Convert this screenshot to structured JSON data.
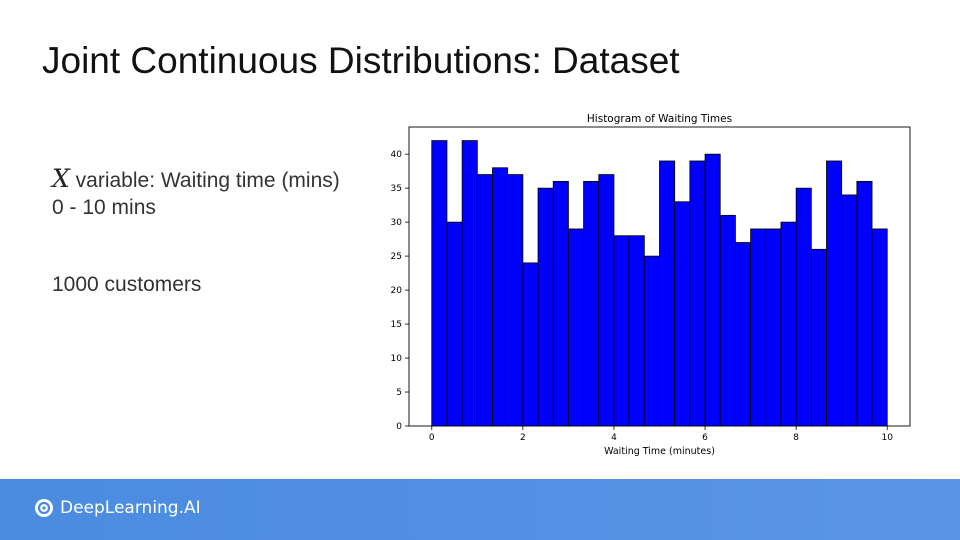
{
  "slide": {
    "title": "Joint Continuous Distributions: Dataset",
    "x_symbol": "X",
    "variable_text": " variable: Waiting time (mins)",
    "range_text": "0 - 10 mins",
    "customers_text": "1000 customers"
  },
  "footer": {
    "brand": "DeepLearning.AI"
  },
  "chart_data": {
    "type": "bar",
    "title": "Histogram of Waiting Times",
    "xlabel": "Waiting Time (minutes)",
    "ylabel": "",
    "xlim": [
      -0.5,
      10.5
    ],
    "ylim": [
      0,
      44
    ],
    "xticks": [
      0,
      2,
      4,
      6,
      8,
      10
    ],
    "yticks": [
      0,
      5,
      10,
      15,
      20,
      25,
      30,
      35,
      40
    ],
    "bin_range": [
      0,
      10
    ],
    "values": [
      42,
      30,
      42,
      37,
      38,
      37,
      24,
      35,
      36,
      29,
      36,
      37,
      28,
      28,
      25,
      39,
      33,
      39,
      40,
      31,
      27,
      29,
      29,
      30,
      35,
      26,
      39,
      34,
      36,
      29
    ],
    "bar_color": "#0000ff",
    "edge_color": "#000000",
    "grid": false
  }
}
